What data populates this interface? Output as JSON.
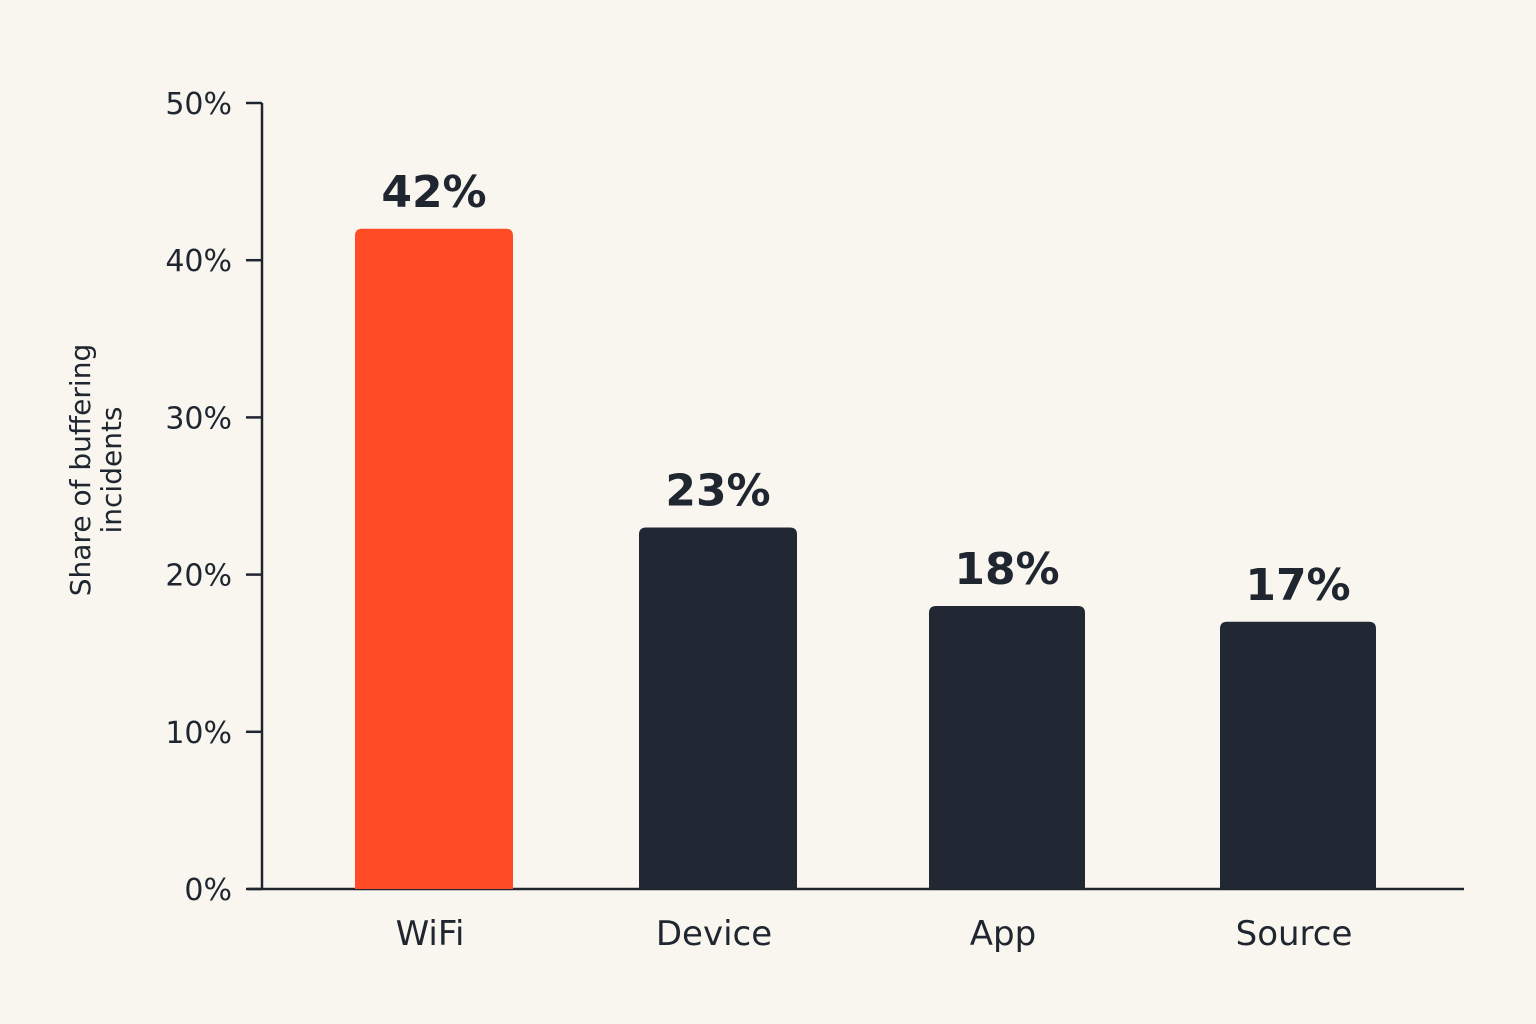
{
  "chart_data": {
    "type": "bar",
    "categories": [
      "WiFi",
      "Device",
      "App",
      "Source"
    ],
    "values": [
      42,
      23,
      18,
      17
    ],
    "value_labels": [
      "42%",
      "23%",
      "18%",
      "17%"
    ],
    "ylabel": "Share of buffering incidents",
    "ylabel_lines": [
      "Share of buffering",
      "incidents"
    ],
    "ylim": [
      0,
      50
    ],
    "yticks": [
      0,
      10,
      20,
      30,
      40,
      50
    ],
    "ytick_labels": [
      "0%",
      "10%",
      "20%",
      "30%",
      "40%",
      "50%"
    ],
    "grid": false,
    "legend": "none",
    "colors": {
      "highlight": "#ff4b26",
      "bar": "#212833",
      "axis": "#1f2630",
      "text": "#1f2630",
      "background": "#f9f6f0"
    },
    "highlight_category": "WiFi"
  }
}
